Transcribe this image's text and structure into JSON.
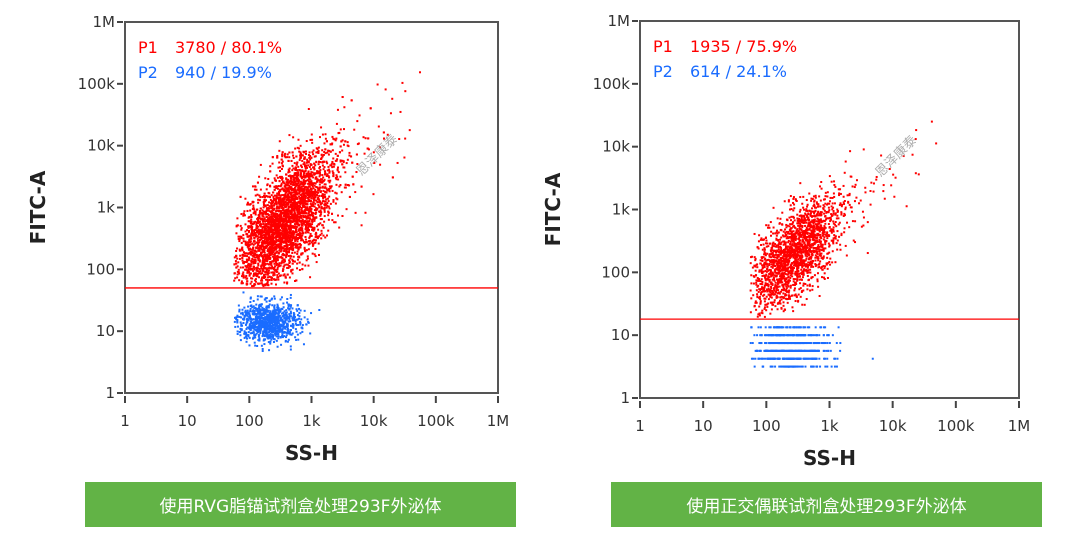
{
  "chart_data": [
    {
      "type": "scatter",
      "title": "",
      "xlabel": "SS-H",
      "ylabel": "FITC-A",
      "xscale": "log",
      "yscale": "log",
      "xlim": [
        1,
        1000000
      ],
      "ylim": [
        1,
        1000000
      ],
      "x_ticks": [
        "1",
        "10",
        "100",
        "1k",
        "10k",
        "100k",
        "1M"
      ],
      "y_ticks": [
        "1",
        "10",
        "100",
        "1k",
        "10k",
        "100k",
        "1M"
      ],
      "gate_threshold_y": 50,
      "gate_color": "#ff0000",
      "watermark": "恩泽康泰",
      "caption": "使用RVG脂锚试剂盒处理293F外泌体",
      "populations": [
        {
          "name": "P1",
          "count": 3780,
          "percent": "80.1%",
          "label": "3780 / 80.1%",
          "color": "#ff0000",
          "log_center": [
            2.55,
            2.75
          ],
          "log_spread": [
            0.38,
            0.42
          ],
          "slope": 0.9
        },
        {
          "name": "P2",
          "count": 940,
          "percent": "19.9%",
          "label": "940 / 19.9%",
          "color": "#1a6cff",
          "log_center": [
            2.3,
            1.15
          ],
          "log_spread": [
            0.25,
            0.16
          ],
          "slope": 0
        }
      ]
    },
    {
      "type": "scatter",
      "title": "",
      "xlabel": "SS-H",
      "ylabel": "FITC-A",
      "xscale": "log",
      "yscale": "log",
      "xlim": [
        1,
        1000000
      ],
      "ylim": [
        1,
        1000000
      ],
      "x_ticks": [
        "1",
        "10",
        "100",
        "1k",
        "10k",
        "100k",
        "1M"
      ],
      "y_ticks": [
        "1",
        "10",
        "100",
        "1k",
        "10k",
        "100k",
        "1M"
      ],
      "gate_threshold_y": 18,
      "gate_color": "#ff0000",
      "watermark": "恩泽康泰",
      "caption": "使用正交偶联试剂盒处理293F外泌体",
      "populations": [
        {
          "name": "P1",
          "count": 1935,
          "percent": "75.9%",
          "label": "1935 / 75.9%",
          "color": "#ff0000",
          "log_center": [
            2.45,
            2.3
          ],
          "log_spread": [
            0.35,
            0.33
          ],
          "slope": 0.8
        },
        {
          "name": "P2",
          "count": 614,
          "percent": "24.1%",
          "label": "614 / 24.1%",
          "color": "#1a6cff",
          "log_center": [
            2.4,
            0.8
          ],
          "log_spread": [
            0.3,
            0.2
          ],
          "slope": 0
        }
      ]
    }
  ]
}
